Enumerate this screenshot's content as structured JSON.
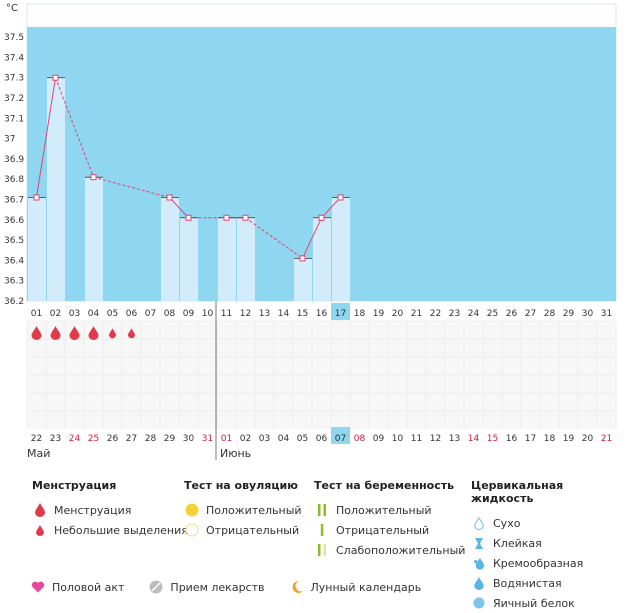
{
  "chart_data": {
    "type": "bar",
    "ylabel": "°C",
    "ylim": [
      36.2,
      37.55
    ],
    "yticks": [
      "36.2",
      "36.3",
      "36.4",
      "36.5",
      "36.6",
      "36.7",
      "36.8",
      "36.9",
      "37",
      "37.1",
      "37.2",
      "37.3",
      "37.4",
      "37.5"
    ],
    "cycle_days": [
      "01",
      "02",
      "03",
      "04",
      "05",
      "06",
      "07",
      "08",
      "09",
      "10",
      "11",
      "12",
      "13",
      "14",
      "15",
      "16",
      "17",
      "18",
      "19",
      "20",
      "21",
      "22",
      "23",
      "24",
      "25",
      "26",
      "27",
      "28",
      "29",
      "30",
      "31"
    ],
    "dates": [
      "22",
      "23",
      "24",
      "25",
      "26",
      "27",
      "28",
      "29",
      "30",
      "31",
      "01",
      "02",
      "03",
      "04",
      "05",
      "06",
      "07",
      "08",
      "09",
      "10",
      "11",
      "12",
      "13",
      "14",
      "15",
      "16",
      "17",
      "18",
      "19",
      "20",
      "21"
    ],
    "date_colors": [
      "#333",
      "#333",
      "#d0203c",
      "#d0203c",
      "#333",
      "#333",
      "#333",
      "#333",
      "#333",
      "#d0203c",
      "#d0203c",
      "#333",
      "#333",
      "#333",
      "#333",
      "#333",
      "#333",
      "#d0203c",
      "#333",
      "#333",
      "#333",
      "#333",
      "#333",
      "#d0203c",
      "#d0203c",
      "#333",
      "#333",
      "#333",
      "#333",
      "#333",
      "#d0203c"
    ],
    "today_index": 16,
    "month_labels": [
      {
        "text": "Май",
        "index": 0
      },
      {
        "text": "Июнь",
        "index": 10
      }
    ],
    "month_divider_index": 10,
    "temperatures": [
      36.71,
      37.3,
      null,
      36.81,
      null,
      null,
      null,
      36.71,
      36.61,
      null,
      36.61,
      36.61,
      null,
      null,
      36.41,
      36.61,
      36.71,
      null,
      null,
      null,
      null,
      null,
      null,
      null,
      null,
      null,
      null,
      null,
      null,
      null,
      null
    ],
    "menstruation": [
      "big",
      "big",
      "big",
      "big",
      "small",
      "small",
      null,
      null,
      null,
      null,
      null,
      null,
      null,
      null,
      null,
      null,
      null,
      null,
      null,
      null,
      null,
      null,
      null,
      null,
      null,
      null,
      null,
      null,
      null,
      null,
      null
    ],
    "colors": {
      "area": "#8fd6f0",
      "bar": "#d2ecfb",
      "line": "#e24470",
      "today": "#8fd6f0",
      "drop": "#e23a4c"
    }
  },
  "legend": {
    "menstruation": {
      "title": "Менструация",
      "items": [
        "Менструация",
        "Небольшие выделения"
      ]
    },
    "ovulation": {
      "title": "Тест на овуляцию",
      "items": [
        "Положительный",
        "Отрицательный"
      ]
    },
    "pregnancy": {
      "title": "Тест на беременность",
      "items": [
        "Положительный",
        "Отрицательный",
        "Слабоположительный"
      ]
    },
    "cervical": {
      "title": "Цервикальная жидкость",
      "items": [
        "Сухо",
        "Клейкая",
        "Кремообразная",
        "Водянистая",
        "Яичный белок"
      ]
    },
    "bottom": [
      "Половой акт",
      "Прием лекарств",
      "Лунный календарь"
    ]
  }
}
